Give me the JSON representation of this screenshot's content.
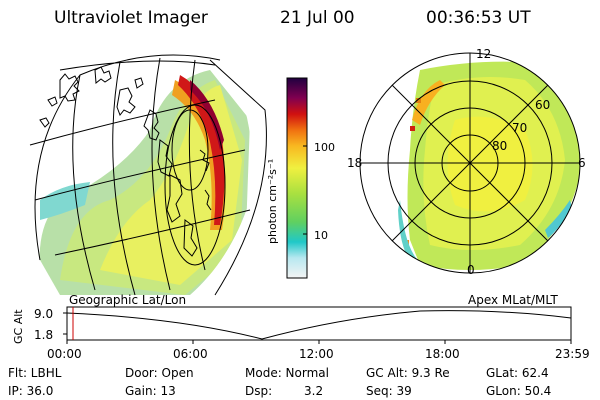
{
  "header": {
    "instrument": "Ultraviolet Imager",
    "date": "21 Jul 00",
    "time": "00:36:53 UT"
  },
  "colorbar": {
    "label": "photon cm⁻²s⁻¹",
    "ticks": [
      "100",
      "10"
    ]
  },
  "polar": {
    "mlt_labels": [
      "12",
      "18",
      "6",
      "0"
    ],
    "lat_labels": [
      "60",
      "70",
      "80"
    ]
  },
  "timeline": {
    "left_label": "Geographic Lat/Lon",
    "right_label": "Apex MLat/MLT",
    "axis_label": "GC Alt",
    "y_ticks": [
      "9.0",
      "1.8"
    ],
    "x_ticks": [
      "00:00",
      "06:00",
      "12:00",
      "18:00",
      "23:59"
    ],
    "marker_color": "#cc0000"
  },
  "info": {
    "flt": "Flt: LBHL",
    "door": "Door: Open",
    "mode": "Mode: Normal",
    "gc_alt": "GC Alt: 9.3 Re",
    "glat": "GLat:  62.4",
    "ip": "IP: 36.0",
    "gain": "Gain: 13",
    "dsp_label": "Dsp:",
    "dsp_value": "3.2",
    "seq": "Seq: 39",
    "glon": "GLon:  50.4"
  }
}
